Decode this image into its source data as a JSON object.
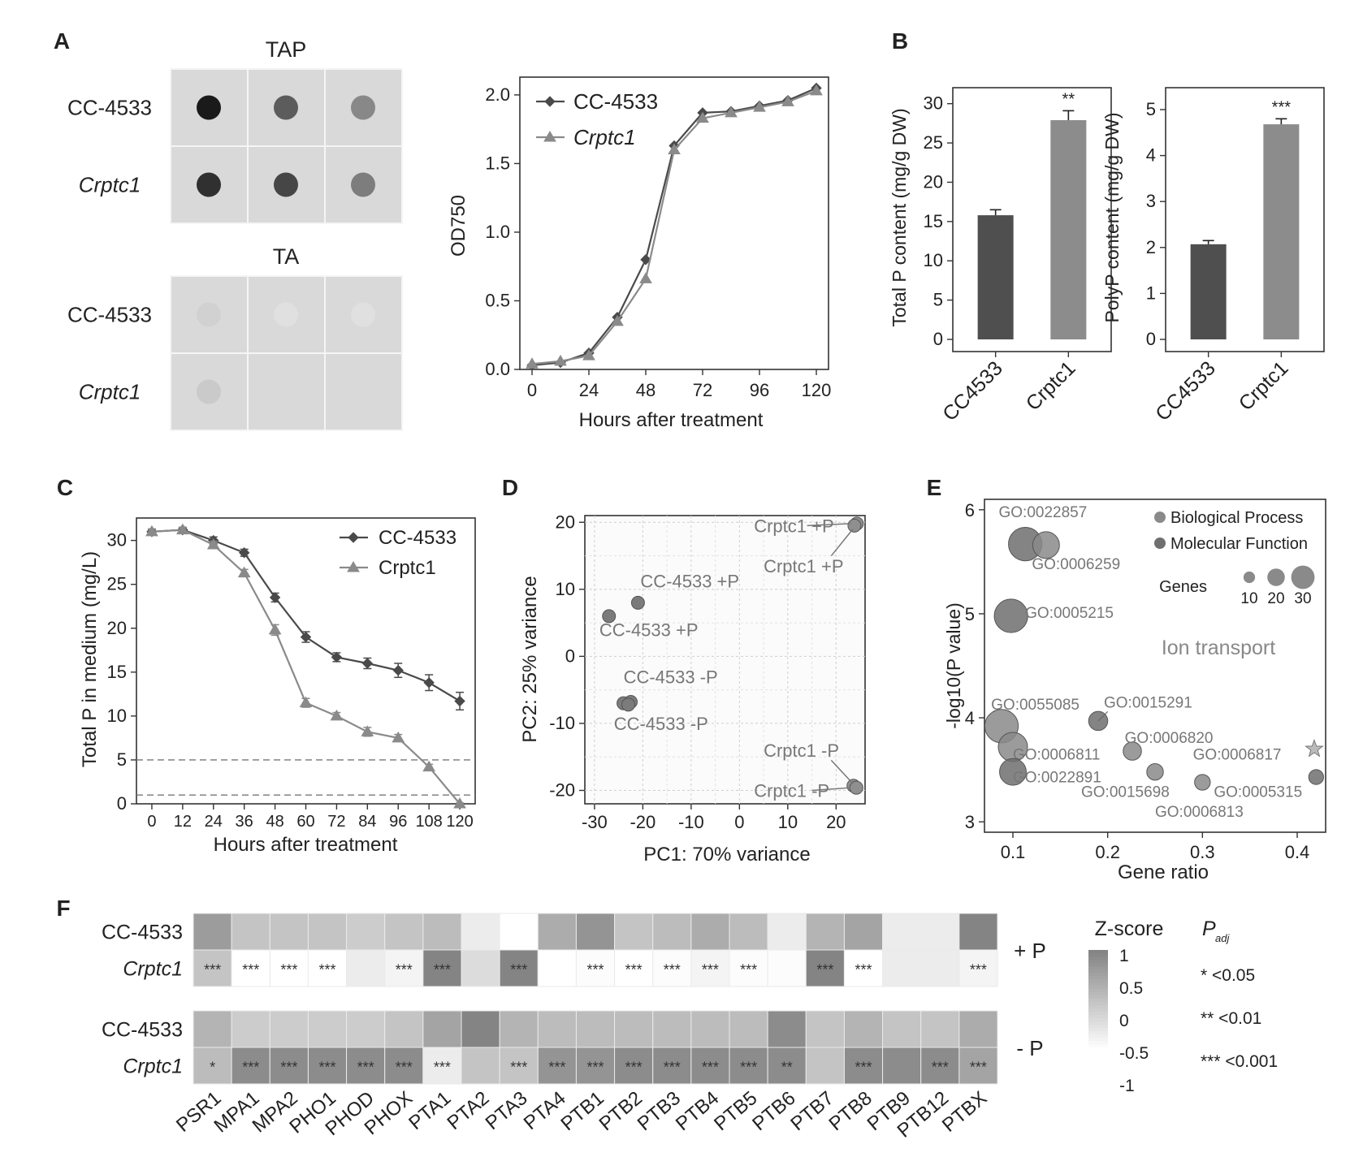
{
  "panels": {
    "A": "A",
    "B": "B",
    "C": "C",
    "D": "D",
    "E": "E",
    "F": "F"
  },
  "spot_assay": {
    "groups": [
      {
        "title": "TAP",
        "intensity": [
          [
            0.95,
            0.65,
            0.45
          ],
          [
            0.85,
            0.75,
            0.5
          ]
        ]
      },
      {
        "title": "TA",
        "intensity": [
          [
            0.12,
            0.05,
            0.05
          ],
          [
            0.15,
            0.08,
            0.08
          ]
        ]
      }
    ],
    "strains": [
      "CC-4533",
      "Crptc1"
    ]
  },
  "colors": {
    "wt": "#4a4a4a",
    "mutant": "#8a8a8a",
    "bar_wt": "#4f4f4f",
    "bar_mut": "#8c8c8c",
    "bp": "#8a8a8a",
    "mf": "#6f6f6f",
    "heat_hi": "#5a5a5a",
    "heat_lo": "#f2f2f2"
  },
  "chart_data": [
    {
      "id": "A-growth",
      "type": "line",
      "xlabel": "Hours after treatment",
      "ylabel": "OD750",
      "xlim": [
        0,
        120
      ],
      "ylim": [
        0,
        2.1
      ],
      "xticks": [
        0,
        24,
        48,
        72,
        96,
        120
      ],
      "yticks": [
        "0.0",
        "0.5",
        "1.0",
        "1.5",
        "2.0"
      ],
      "yticks_values": [
        0,
        0.5,
        1.0,
        1.5,
        2.0
      ],
      "legend_pos": "top-left",
      "series": [
        {
          "name": "CC-4533",
          "marker": "diamond",
          "x": [
            0,
            12,
            24,
            36,
            48,
            60,
            72,
            84,
            96,
            108,
            120
          ],
          "y": [
            0.03,
            0.05,
            0.12,
            0.38,
            0.8,
            1.63,
            1.87,
            1.88,
            1.92,
            1.96,
            2.05
          ]
        },
        {
          "name": "Crptc1",
          "marker": "triangle",
          "x": [
            0,
            12,
            24,
            36,
            48,
            60,
            72,
            84,
            96,
            108,
            120
          ],
          "y": [
            0.04,
            0.06,
            0.1,
            0.35,
            0.66,
            1.6,
            1.83,
            1.87,
            1.91,
            1.95,
            2.03
          ]
        }
      ]
    },
    {
      "id": "B-totalP",
      "type": "bar",
      "ylabel": "Total P content (mg/g DW)",
      "categories": [
        "CC4533",
        "Crptc1"
      ],
      "values": [
        15.8,
        27.9
      ],
      "errors": [
        0.7,
        1.2
      ],
      "ylim": [
        0,
        31
      ],
      "yticks": [
        0,
        5,
        10,
        15,
        20,
        25,
        30
      ],
      "significance": [
        "",
        "**"
      ]
    },
    {
      "id": "B-polyP",
      "type": "bar",
      "ylabel": "PolyP content (mg/g DW)",
      "categories": [
        "CC4533",
        "Crptc1"
      ],
      "values": [
        2.07,
        4.68
      ],
      "errors": [
        0.08,
        0.12
      ],
      "ylim": [
        0,
        5.3
      ],
      "yticks": [
        0,
        1,
        2,
        3,
        4,
        5
      ],
      "significance": [
        "",
        "***"
      ]
    },
    {
      "id": "C-medium",
      "type": "line",
      "xlabel": "Hours after treatment",
      "ylabel": "Total P in medium (mg/L)",
      "xlim": [
        -6,
        126
      ],
      "ylim": [
        0,
        32
      ],
      "xticks": [
        0,
        12,
        24,
        36,
        48,
        60,
        72,
        84,
        96,
        108,
        120
      ],
      "yticks": [
        0,
        5,
        10,
        15,
        20,
        25,
        30
      ],
      "reference_lines": [
        5,
        1
      ],
      "legend_pos": "top-right",
      "series": [
        {
          "name": "CC-4533",
          "marker": "diamond",
          "x": [
            0,
            12,
            24,
            36,
            48,
            60,
            72,
            84,
            96,
            108,
            120
          ],
          "y": [
            31,
            31.2,
            30,
            28.6,
            23.5,
            19,
            16.7,
            16,
            15.2,
            13.8,
            11.7
          ],
          "err": [
            0.3,
            0.3,
            0.4,
            0.4,
            0.5,
            0.6,
            0.5,
            0.6,
            0.8,
            0.9,
            1.0
          ]
        },
        {
          "name": "Crptc1",
          "marker": "triangle",
          "x": [
            0,
            12,
            24,
            36,
            48,
            60,
            72,
            84,
            96,
            108,
            120
          ],
          "y": [
            31,
            31.2,
            29.5,
            26.3,
            19.8,
            11.5,
            10,
            8.2,
            7.5,
            4.2,
            0
          ],
          "err": [
            0.3,
            0.3,
            0.4,
            0.4,
            0.6,
            0.5,
            0.4,
            0.5,
            0.4,
            0.3,
            0.1
          ]
        }
      ]
    },
    {
      "id": "D-pca",
      "type": "scatter",
      "xlabel": "PC1: 70% variance",
      "ylabel": "PC2: 25% variance",
      "xlim": [
        -32,
        26
      ],
      "ylim": [
        -22,
        21
      ],
      "xticks": [
        -30,
        -20,
        -10,
        0,
        10,
        20
      ],
      "yticks": [
        -20,
        -10,
        0,
        10,
        20
      ],
      "points": [
        {
          "x": 24.3,
          "y": 19.8,
          "group": "mut"
        },
        {
          "x": 23.8,
          "y": 19.5,
          "group": "mut"
        },
        {
          "x": -21,
          "y": 8,
          "group": "wt"
        },
        {
          "x": -27,
          "y": 6,
          "group": "wt"
        },
        {
          "x": -24,
          "y": -7,
          "group": "wt"
        },
        {
          "x": -22.5,
          "y": -6.8,
          "group": "wt"
        },
        {
          "x": -23,
          "y": -7.2,
          "group": "wt"
        },
        {
          "x": 23.6,
          "y": -19.3,
          "group": "mut"
        },
        {
          "x": 24.2,
          "y": -19.6,
          "group": "mut"
        }
      ],
      "annotations": [
        {
          "text": "Crptc1 +P",
          "x": 3,
          "y": 18.5
        },
        {
          "text": "Crptc1 +P",
          "x": 5,
          "y": 12.5
        },
        {
          "text": "CC-4533 +P",
          "x": -20.5,
          "y": 10.3
        },
        {
          "text": "CC-4533 +P",
          "x": -29,
          "y": 3
        },
        {
          "text": "CC-4533 -P",
          "x": -24,
          "y": -4
        },
        {
          "text": "CC-4533 -P",
          "x": -26,
          "y": -11
        },
        {
          "text": "Crptc1 -P",
          "x": 5,
          "y": -15
        },
        {
          "text": "Crptc1 -P",
          "x": 3,
          "y": -21
        }
      ]
    },
    {
      "id": "E-go",
      "type": "scatter",
      "xlabel": "Gene ratio",
      "ylabel": "-log10(P value)",
      "xlim": [
        0.07,
        0.43
      ],
      "ylim": [
        2.9,
        6.1
      ],
      "xticks": [
        "0.1",
        "0.2",
        "0.3",
        "0.4"
      ],
      "xticks_values": [
        0.1,
        0.2,
        0.3,
        0.4
      ],
      "yticks": [
        3,
        4,
        5,
        6
      ],
      "legend": [
        "Biological Process",
        "Molecular Function"
      ],
      "size_legend_title": "Genes",
      "size_legend": [
        10,
        20,
        30
      ],
      "annotation": "Ion transport",
      "points": [
        {
          "label": "GO:0022857",
          "x": 0.113,
          "y": 5.67,
          "genes": 30,
          "cat": "mf",
          "lx": 0.085,
          "ly": 5.93
        },
        {
          "label": "GO:0006259",
          "x": 0.135,
          "y": 5.66,
          "genes": 22,
          "cat": "bp",
          "lx": 0.12,
          "ly": 5.43
        },
        {
          "label": "GO:0005215",
          "x": 0.098,
          "y": 4.98,
          "genes": 30,
          "cat": "mf",
          "lx": 0.113,
          "ly": 4.96
        },
        {
          "label": "GO:0055085",
          "x": 0.088,
          "y": 3.92,
          "genes": 30,
          "cat": "bp",
          "lx": 0.077,
          "ly": 4.08
        },
        {
          "label": "GO:0015291",
          "x": 0.19,
          "y": 3.97,
          "genes": 13,
          "cat": "mf",
          "lx": 0.196,
          "ly": 4.1
        },
        {
          "label": "GO:0006811",
          "x": 0.1,
          "y": 3.72,
          "genes": 25,
          "cat": "bp",
          "lx": 0.1,
          "ly": 3.6
        },
        {
          "label": "GO:0006820",
          "x": 0.226,
          "y": 3.68,
          "genes": 12,
          "cat": "bp",
          "lx": 0.218,
          "ly": 3.76
        },
        {
          "label": "GO:0006817",
          "x": 0.418,
          "y": 3.7,
          "genes": 8,
          "cat": "bp",
          "star": true,
          "lx": 0.29,
          "ly": 3.6
        },
        {
          "label": "GO:0022891",
          "x": 0.1,
          "y": 3.48,
          "genes": 22,
          "cat": "mf",
          "lx": 0.1,
          "ly": 3.38
        },
        {
          "label": "GO:0015698",
          "x": 0.25,
          "y": 3.48,
          "genes": 10,
          "cat": "bp",
          "lx": 0.172,
          "ly": 3.24
        },
        {
          "label": "GO:0006813",
          "x": 0.3,
          "y": 3.38,
          "genes": 9,
          "cat": "bp",
          "lx": 0.25,
          "ly": 3.05
        },
        {
          "label": "GO:0005315",
          "x": 0.42,
          "y": 3.43,
          "genes": 8,
          "cat": "mf",
          "lx": 0.312,
          "ly": 3.24
        }
      ]
    },
    {
      "id": "F-heatmap",
      "type": "heatmap",
      "genes": [
        "PSR1",
        "MPA1",
        "MPA2",
        "PHO1",
        "PHOD",
        "PHOX",
        "PTA1",
        "PTA2",
        "PTA3",
        "PTA4",
        "PTB1",
        "PTB2",
        "PTB3",
        "PTB4",
        "PTB5",
        "PTB6",
        "PTB7",
        "PTB8",
        "PTB9",
        "PTB12",
        "PTBX"
      ],
      "rows": [
        "CC-4533",
        "Crptc1",
        "CC-4533",
        "Crptc1"
      ],
      "row_conditions": [
        "+ P",
        "- P"
      ],
      "z": [
        [
          0.7,
          0.2,
          0.2,
          0.2,
          0.1,
          0.2,
          0.3,
          -0.3,
          -0.9,
          0.5,
          0.8,
          0.2,
          0.3,
          0.5,
          0.3,
          -0.3,
          0.4,
          0.6,
          -0.3,
          -0.3,
          1.0
        ],
        [
          0.2,
          -0.6,
          -0.6,
          -0.6,
          -0.3,
          -0.4,
          1.0,
          -0.1,
          1.0,
          -0.7,
          -0.5,
          -0.6,
          -0.5,
          -0.4,
          -0.5,
          -0.5,
          1.0,
          -0.6,
          -0.3,
          -0.3,
          -0.4
        ],
        [
          0.4,
          0.1,
          0.1,
          0.1,
          0.1,
          0.2,
          0.6,
          1.0,
          0.4,
          0.3,
          0.3,
          0.3,
          0.3,
          0.3,
          0.3,
          0.9,
          0.2,
          0.4,
          0.2,
          0.2,
          0.5
        ],
        [
          0.3,
          0.9,
          0.9,
          0.9,
          0.9,
          0.9,
          -0.3,
          0.2,
          0.2,
          0.8,
          0.8,
          0.9,
          0.9,
          0.9,
          0.9,
          0.9,
          0.2,
          0.9,
          0.9,
          0.9,
          0.6
        ]
      ],
      "sig": [
        [
          "",
          "",
          "",
          "",
          "",
          "",
          "",
          "",
          "",
          "",
          "",
          "",
          "",
          "",
          "",
          "",
          "",
          "",
          "",
          "",
          ""
        ],
        [
          "***",
          "***",
          "***",
          "***",
          "",
          "***",
          "***",
          "",
          "***",
          "",
          "***",
          "***",
          "***",
          "***",
          "***",
          "",
          "***",
          "***",
          "",
          "",
          "***"
        ],
        [
          "",
          "",
          "",
          "",
          "",
          "",
          "",
          "",
          "",
          "",
          "",
          "",
          "",
          "",
          "",
          "",
          "",
          "",
          "",
          "",
          ""
        ],
        [
          "*",
          "***",
          "***",
          "***",
          "***",
          "***",
          "***",
          "",
          "***",
          "***",
          "***",
          "***",
          "***",
          "***",
          "***",
          "**",
          "",
          "***",
          "",
          "***",
          "***"
        ]
      ],
      "legend_title": "Z-score",
      "legend_ticks": [
        "1",
        "0.5",
        "0",
        "-0.5",
        "-1"
      ],
      "padj_title": "P",
      "padj_sub": "adj",
      "padj_items": [
        "* <0.05",
        "** <0.01",
        "*** <0.001"
      ]
    }
  ]
}
